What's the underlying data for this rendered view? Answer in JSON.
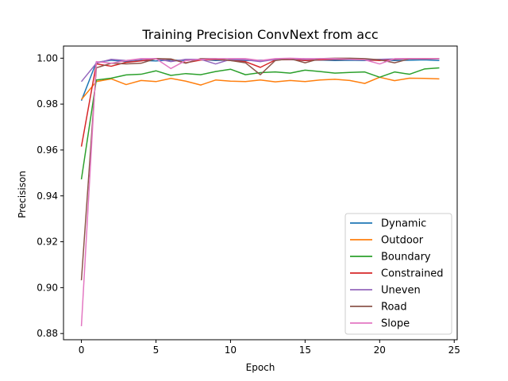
{
  "chart_data": {
    "type": "line",
    "title": "Training Precision ConvNext from acc",
    "xlabel": "Epoch",
    "ylabel": "Precisison",
    "xlim": [
      -1.2,
      25.2
    ],
    "ylim": [
      0.8773,
      1.0053
    ],
    "x_ticks": [
      0,
      5,
      10,
      15,
      20,
      25
    ],
    "y_ticks": [
      0.88,
      0.9,
      0.92,
      0.94,
      0.96,
      0.98,
      1.0
    ],
    "x_tick_labels": [
      "0",
      "5",
      "10",
      "15",
      "20",
      "25"
    ],
    "y_tick_labels": [
      "0.88",
      "0.90",
      "0.92",
      "0.94",
      "0.96",
      "0.98",
      "1.00"
    ],
    "grid": false,
    "legend_position": "lower-right",
    "x": [
      0,
      1,
      2,
      3,
      4,
      5,
      6,
      7,
      8,
      9,
      10,
      11,
      12,
      13,
      14,
      15,
      16,
      17,
      18,
      19,
      20,
      21,
      22,
      23,
      24
    ],
    "series": [
      {
        "name": "Dynamic",
        "color": "#1f77b4",
        "values": [
          0.9815,
          0.9982,
          0.9991,
          0.9985,
          0.999,
          0.9988,
          0.9992,
          0.999,
          0.9995,
          0.999,
          0.9993,
          0.999,
          0.9991,
          0.9993,
          0.9994,
          0.999,
          0.9992,
          0.999,
          0.9991,
          0.999,
          0.9992,
          0.999,
          0.9991,
          0.9993,
          0.999
        ]
      },
      {
        "name": "Outdoor",
        "color": "#ff7f0e",
        "values": [
          0.982,
          0.9898,
          0.991,
          0.9885,
          0.9903,
          0.9898,
          0.9912,
          0.99,
          0.9883,
          0.9905,
          0.99,
          0.9898,
          0.9905,
          0.9897,
          0.9903,
          0.9898,
          0.9905,
          0.9908,
          0.9903,
          0.989,
          0.9917,
          0.9902,
          0.9913,
          0.9912,
          0.991
        ]
      },
      {
        "name": "Boundary",
        "color": "#2ca02c",
        "values": [
          0.9472,
          0.9905,
          0.9913,
          0.9927,
          0.993,
          0.9945,
          0.9925,
          0.9933,
          0.9928,
          0.9942,
          0.9952,
          0.9928,
          0.9937,
          0.994,
          0.9935,
          0.9948,
          0.9942,
          0.9935,
          0.9938,
          0.994,
          0.9917,
          0.994,
          0.993,
          0.9953,
          0.9958
        ]
      },
      {
        "name": "Constrained",
        "color": "#d62728",
        "values": [
          0.9615,
          0.9975,
          0.9965,
          0.9982,
          0.9988,
          0.9998,
          0.9995,
          0.998,
          0.9992,
          0.9995,
          0.999,
          0.9985,
          0.996,
          0.9992,
          0.9995,
          0.999,
          0.9993,
          0.9995,
          0.9995,
          0.9993,
          0.999,
          0.9995,
          0.9998,
          0.9997,
          0.9998
        ]
      },
      {
        "name": "Uneven",
        "color": "#9467bd",
        "values": [
          0.9898,
          0.9978,
          0.9995,
          0.999,
          0.9995,
          0.9998,
          0.9985,
          0.9995,
          0.9995,
          0.9975,
          0.9995,
          0.9993,
          0.9985,
          0.9995,
          0.9998,
          0.9995,
          0.9998,
          0.9997,
          0.9998,
          0.9993,
          0.9995,
          0.9997,
          0.9998,
          0.9998,
          0.9998
        ]
      },
      {
        "name": "Road",
        "color": "#8c564b",
        "values": [
          0.9032,
          0.9958,
          0.9978,
          0.9975,
          0.9978,
          0.9998,
          0.9997,
          0.9978,
          0.9998,
          0.9998,
          0.999,
          0.998,
          0.9928,
          0.999,
          0.9998,
          0.998,
          0.9998,
          1.0,
          1.0,
          0.9998,
          0.9993,
          0.998,
          0.9997,
          0.9998,
          0.9998
        ]
      },
      {
        "name": "Slope",
        "color": "#e377c2",
        "values": [
          0.8832,
          0.9985,
          0.9978,
          0.999,
          0.9998,
          0.9998,
          0.9955,
          0.999,
          0.9995,
          0.9998,
          0.9998,
          0.9998,
          0.999,
          0.9998,
          1.0,
          0.9998,
          0.9998,
          0.9998,
          0.9995,
          0.9993,
          0.9975,
          0.9998,
          0.9998,
          0.9998,
          0.9998
        ]
      }
    ]
  }
}
